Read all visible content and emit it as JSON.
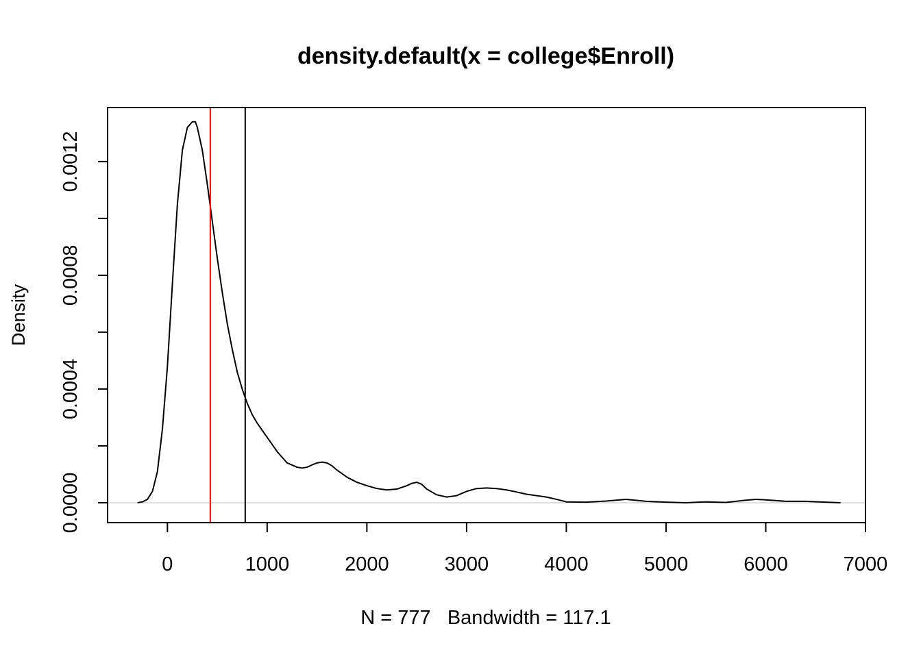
{
  "chart_data": {
    "type": "line",
    "title": "density.default(x = college$Enroll)",
    "subtitle": "N = 777   Bandwidth = 117.1",
    "xlabel": "",
    "ylabel": "Density",
    "xlim": [
      -600,
      7000
    ],
    "ylim": [
      -7e-05,
      0.00139
    ],
    "x_ticks": [
      0,
      1000,
      2000,
      3000,
      4000,
      5000,
      6000,
      7000
    ],
    "x_tick_labels": [
      "0",
      "1000",
      "2000",
      "3000",
      "4000",
      "5000",
      "6000",
      "7000"
    ],
    "y_ticks": [
      0.0,
      0.0002,
      0.0004,
      0.0006,
      0.0008,
      0.001,
      0.0012
    ],
    "y_tick_labels": [
      "0.0000",
      "",
      "0.0004",
      "",
      "0.0008",
      "",
      "0.0012"
    ],
    "grid": false,
    "baseline": {
      "y": 0,
      "color": "#bebebe"
    },
    "series": [
      {
        "x": [
          -300,
          -250,
          -200,
          -150,
          -100,
          -50,
          0,
          50,
          100,
          150,
          200,
          250,
          280,
          300,
          350,
          400,
          450,
          500,
          550,
          600,
          650,
          700,
          750,
          800,
          850,
          900,
          1000,
          1100,
          1200,
          1300,
          1350,
          1400,
          1450,
          1500,
          1550,
          1600,
          1650,
          1700,
          1800,
          1900,
          2000,
          2100,
          2200,
          2300,
          2400,
          2450,
          2500,
          2550,
          2600,
          2700,
          2800,
          2900,
          3000,
          3100,
          3200,
          3300,
          3400,
          3500,
          3600,
          3700,
          3800,
          3900,
          4000,
          4200,
          4400,
          4600,
          4800,
          5000,
          5200,
          5400,
          5600,
          5800,
          5900,
          6000,
          6200,
          6400,
          6600,
          6750
        ],
        "y": [
          0.0,
          3e-06,
          1.2e-05,
          4e-05,
          0.00011,
          0.00026,
          0.00048,
          0.00077,
          0.00105,
          0.00124,
          0.00132,
          0.00134,
          0.00134,
          0.00132,
          0.00124,
          0.00112,
          0.00099,
          0.00086,
          0.00074,
          0.00063,
          0.00054,
          0.00046,
          0.0004,
          0.00035,
          0.00031,
          0.00028,
          0.00023,
          0.00018,
          0.00014,
          0.000125,
          0.000122,
          0.000125,
          0.000133,
          0.00014,
          0.000143,
          0.00014,
          0.00013,
          0.000115,
          9e-05,
          7.2e-05,
          6e-05,
          5e-05,
          4.5e-05,
          4.8e-05,
          6e-05,
          6.8e-05,
          7.2e-05,
          6.5e-05,
          4.8e-05,
          2.8e-05,
          2e-05,
          2.5e-05,
          4e-05,
          5e-05,
          5.2e-05,
          5e-05,
          4.5e-05,
          3.8e-05,
          3e-05,
          2.5e-05,
          2e-05,
          1.2e-05,
          3e-06,
          2e-06,
          6e-06,
          1.2e-05,
          5e-06,
          2e-06,
          0.0,
          3e-06,
          1e-06,
          9e-06,
          1.2e-05,
          1e-05,
          5e-06,
          5e-06,
          2e-06,
          0.0
        ]
      }
    ],
    "vertical_lines": [
      {
        "x": 430,
        "color": "#ff0000"
      },
      {
        "x": 780,
        "color": "#000000"
      }
    ]
  }
}
